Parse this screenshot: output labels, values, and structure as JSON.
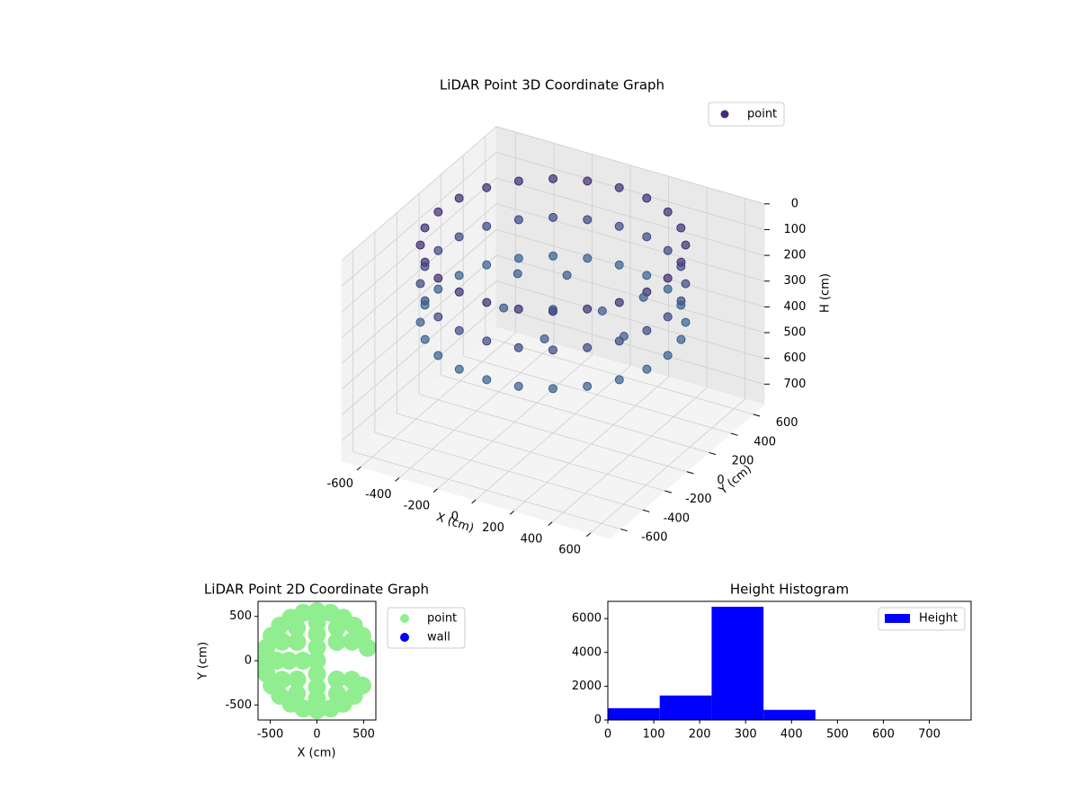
{
  "chart_data": [
    {
      "type": "scatter3d",
      "title": "LiDAR Point 3D Coordinate Graph",
      "xlabel": "X (cm)",
      "ylabel": "Y (cm)",
      "zlabel": "H (cm)",
      "xlim": [
        -700,
        700
      ],
      "ylim": [
        -700,
        700
      ],
      "zlim": [
        0,
        780
      ],
      "zinverted": true,
      "xticks": [
        -600,
        -400,
        -200,
        0,
        200,
        400,
        600
      ],
      "yticks": [
        -600,
        -400,
        -200,
        0,
        200,
        400,
        600
      ],
      "zticks": [
        0,
        100,
        200,
        300,
        400,
        500,
        600,
        700
      ],
      "colormap": "viridis",
      "legend": "upper right",
      "series": [
        {
          "name": "point",
          "color": "#472c7a",
          "x": [
            600,
            580,
            520,
            424,
            300,
            155,
            0,
            -155,
            -300,
            -424,
            -520,
            -580,
            -600,
            -580,
            -520,
            -424,
            -300,
            -155,
            0,
            155,
            300,
            424,
            520,
            580,
            600,
            580,
            520,
            424,
            300,
            155,
            0,
            -155,
            -300,
            -424,
            -520,
            -580,
            -600,
            -580,
            -520,
            -424,
            -300,
            -155,
            0,
            155,
            300,
            424,
            520,
            580,
            600,
            580,
            520,
            424,
            300,
            155,
            0,
            -155,
            -300,
            -424,
            -520,
            -580,
            -600,
            -580,
            -520,
            -424,
            -300,
            -155,
            0,
            155,
            300,
            424,
            520,
            580,
            0,
            200,
            -200,
            100,
            -300,
            300,
            400,
            -100
          ],
          "y": [
            0,
            155,
            300,
            424,
            520,
            580,
            600,
            580,
            520,
            424,
            300,
            155,
            0,
            -155,
            -300,
            -424,
            -520,
            -580,
            -600,
            -580,
            -520,
            -424,
            -300,
            -155,
            0,
            155,
            300,
            424,
            520,
            580,
            600,
            580,
            520,
            424,
            300,
            155,
            0,
            -155,
            -300,
            -424,
            -520,
            -580,
            -600,
            -580,
            -520,
            -424,
            -300,
            -155,
            0,
            155,
            300,
            424,
            520,
            580,
            600,
            580,
            520,
            424,
            300,
            155,
            0,
            -155,
            -300,
            -424,
            -520,
            -580,
            -600,
            -580,
            -520,
            -424,
            -300,
            -155,
            0,
            100,
            -100,
            -250,
            200,
            300,
            -50,
            300
          ],
          "z": [
            50,
            50,
            50,
            50,
            50,
            50,
            50,
            50,
            50,
            50,
            50,
            50,
            50,
            50,
            50,
            50,
            50,
            50,
            50,
            50,
            50,
            50,
            50,
            50,
            200,
            200,
            200,
            200,
            200,
            200,
            200,
            200,
            200,
            200,
            200,
            200,
            200,
            200,
            200,
            200,
            200,
            200,
            200,
            200,
            200,
            200,
            200,
            200,
            350,
            350,
            350,
            350,
            350,
            350,
            350,
            350,
            350,
            350,
            350,
            350,
            350,
            350,
            350,
            350,
            350,
            350,
            350,
            350,
            350,
            350,
            350,
            350,
            300,
            300,
            300,
            300,
            300,
            300,
            300,
            300
          ]
        }
      ]
    },
    {
      "type": "scatter",
      "title": "LiDAR Point 2D Coordinate Graph",
      "xlabel": "X (cm)",
      "ylabel": "Y (cm)",
      "xlim": [
        -630,
        630
      ],
      "ylim": [
        -670,
        670
      ],
      "xticks": [
        -500,
        0,
        500
      ],
      "yticks": [
        -500,
        0,
        500
      ],
      "legend": "outside upper right",
      "series": [
        {
          "name": "point",
          "color": "#90ee90",
          "x": [
            541,
            485,
            396,
            280,
            145,
            0,
            -145,
            -280,
            -396,
            -485,
            -541,
            -560,
            -541,
            -485,
            -396,
            -280,
            -145,
            0,
            145,
            280,
            396,
            485,
            372,
            215,
            0,
            -215,
            -372,
            -430,
            -372,
            -215,
            0,
            215,
            372,
            212,
            0,
            -212,
            -300,
            -212,
            0,
            212,
            0,
            -150,
            0,
            0
          ],
          "y": [
            145,
            280,
            396,
            485,
            541,
            560,
            541,
            485,
            396,
            280,
            145,
            0,
            -145,
            -280,
            -396,
            -485,
            -541,
            -560,
            -541,
            -485,
            -396,
            -280,
            215,
            372,
            430,
            372,
            215,
            0,
            -215,
            -372,
            -430,
            -372,
            -215,
            212,
            300,
            212,
            0,
            -212,
            -300,
            -212,
            150,
            0,
            -150,
            0
          ]
        },
        {
          "name": "wall",
          "color": "#0000ff",
          "x": [],
          "y": []
        }
      ]
    },
    {
      "type": "histogram",
      "title": "Height Histogram",
      "bins": [
        0,
        113,
        226,
        339,
        452,
        565,
        678,
        791
      ],
      "counts": [
        700,
        1450,
        6700,
        600,
        10,
        5,
        5
      ],
      "color": "#0000ff",
      "xlim": [
        0,
        791
      ],
      "ylim": [
        0,
        7020
      ],
      "xticks": [
        0,
        100,
        200,
        300,
        400,
        500,
        600,
        700
      ],
      "yticks": [
        0,
        2000,
        4000,
        6000
      ],
      "legend": "upper right",
      "series_name": "Height"
    }
  ]
}
